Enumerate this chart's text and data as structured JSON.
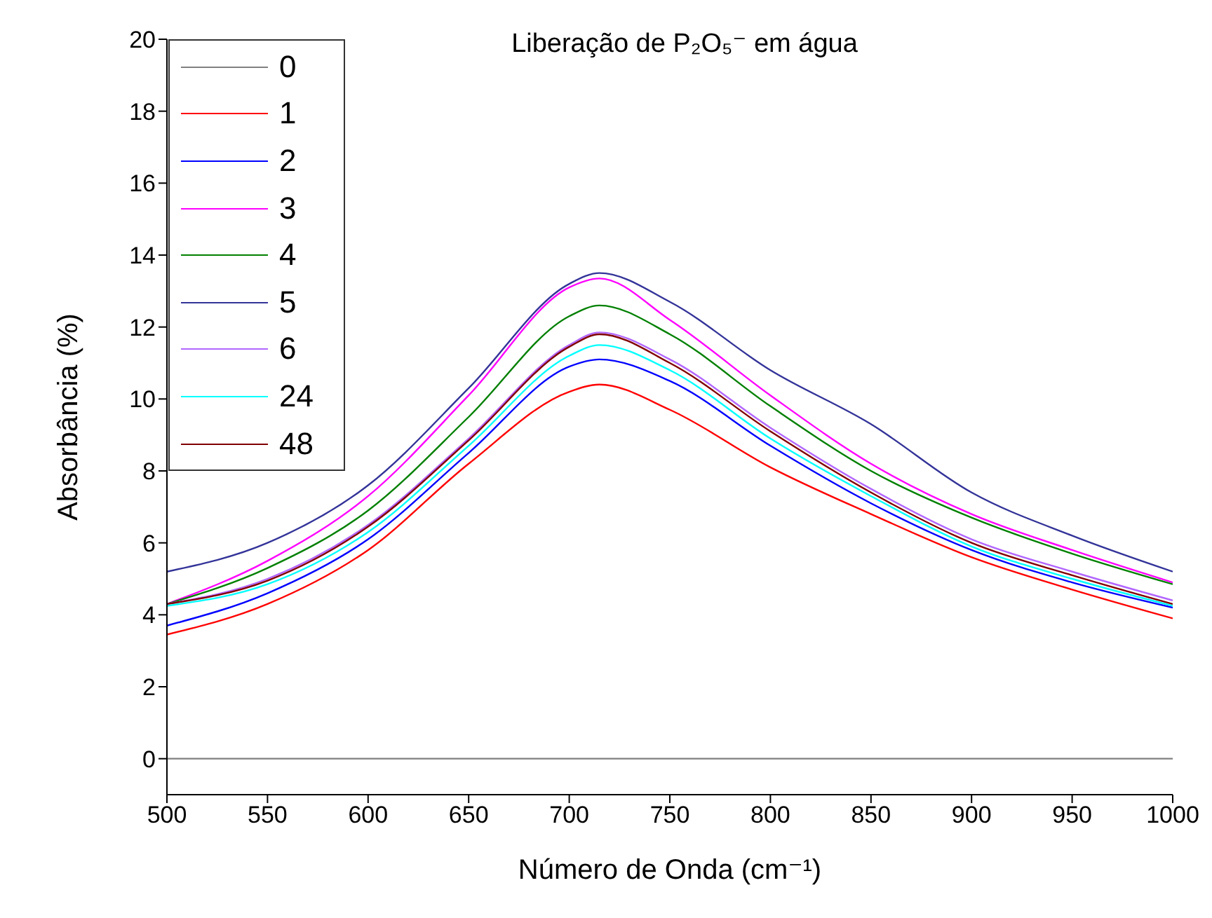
{
  "chart_data": {
    "type": "line",
    "title": "Liberação de P₂O₅⁻ em água",
    "xlabel": "Número de Onda (cm⁻¹)",
    "ylabel": "Absorbância (%)",
    "x": [
      500,
      550,
      600,
      650,
      700,
      715,
      750,
      800,
      850,
      900,
      950,
      1000
    ],
    "xlim": [
      500,
      1000
    ],
    "xticks": [
      500,
      550,
      600,
      650,
      700,
      750,
      800,
      850,
      900,
      950,
      1000
    ],
    "ylim": [
      -1,
      20
    ],
    "yticks": [
      0,
      2,
      4,
      6,
      8,
      10,
      12,
      14,
      16,
      18,
      20
    ],
    "grid": false,
    "legend": "top left",
    "line_style": "solid",
    "marker": "none",
    "series": [
      {
        "name": "0",
        "color": "#808080",
        "values": [
          0,
          0,
          0,
          0,
          0,
          0,
          0,
          0,
          0,
          0,
          0,
          0
        ]
      },
      {
        "name": "1",
        "color": "#ff0000",
        "values": [
          3.45,
          4.3,
          5.8,
          8.2,
          10.2,
          10.4,
          9.7,
          8.1,
          6.8,
          5.6,
          4.7,
          3.9
        ]
      },
      {
        "name": "2",
        "color": "#0000ff",
        "values": [
          3.7,
          4.6,
          6.1,
          8.5,
          10.9,
          11.1,
          10.5,
          8.7,
          7.1,
          5.8,
          4.9,
          4.2
        ]
      },
      {
        "name": "3",
        "color": "#ff00ff",
        "values": [
          4.3,
          5.5,
          7.3,
          10.1,
          13.1,
          13.35,
          12.2,
          10.1,
          8.2,
          6.8,
          5.8,
          4.9
        ]
      },
      {
        "name": "4",
        "color": "#008000",
        "values": [
          4.3,
          5.3,
          6.9,
          9.5,
          12.3,
          12.6,
          11.8,
          9.8,
          8.0,
          6.7,
          5.7,
          4.85
        ]
      },
      {
        "name": "5",
        "color": "#333399",
        "values": [
          5.2,
          6.0,
          7.6,
          10.3,
          13.2,
          13.5,
          12.7,
          10.8,
          9.3,
          7.4,
          6.2,
          5.2
        ]
      },
      {
        "name": "6",
        "color": "#b266ff",
        "values": [
          4.3,
          5.0,
          6.5,
          8.9,
          11.5,
          11.85,
          11.1,
          9.2,
          7.5,
          6.1,
          5.2,
          4.4
        ]
      },
      {
        "name": "24",
        "color": "#00ffff",
        "values": [
          4.25,
          4.85,
          6.3,
          8.7,
          11.2,
          11.5,
          10.8,
          8.9,
          7.3,
          5.9,
          5.0,
          4.25
        ]
      },
      {
        "name": "48",
        "color": "#800000",
        "values": [
          4.3,
          4.95,
          6.45,
          8.85,
          11.45,
          11.8,
          11.0,
          9.1,
          7.4,
          6.0,
          5.1,
          4.3
        ]
      }
    ]
  }
}
